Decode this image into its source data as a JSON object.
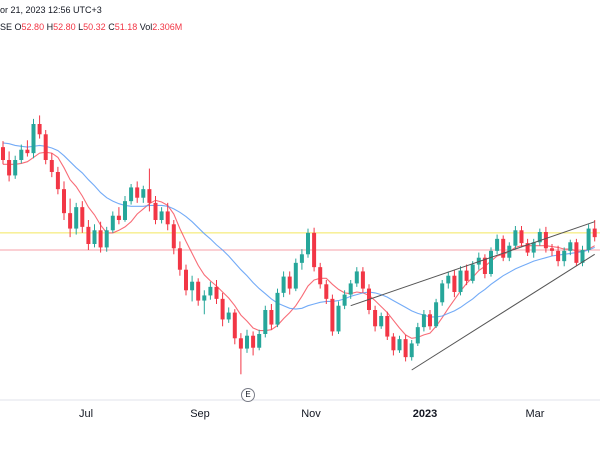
{
  "header": {
    "date_text": "or 21, 2023 12:56 UTC+3",
    "exchange_fragment": "SE",
    "o_label": "O",
    "o_value": "52.80",
    "h_label": "H",
    "h_value": "52.80",
    "l_label": "L",
    "l_value": "50.32",
    "c_label": "C",
    "c_value": "51.18",
    "vol_label": "Vol",
    "vol_value": "2.306M"
  },
  "earnings_marker": "E",
  "colors": {
    "up": "#26a69a",
    "down": "#f23645",
    "ma_fast": "#f7525f",
    "ma_slow": "#5b9cf6",
    "yellow_line": "#f3e65e",
    "pink_line": "#f7a1a8",
    "trend": "#555555"
  },
  "chart_data": {
    "type": "candlestick",
    "x_ticks": [
      "Jul",
      "Sep",
      "Nov",
      "2023",
      "Mar"
    ],
    "horizontal_lines": [
      {
        "name": "resistance",
        "level": 60.5
      },
      {
        "name": "price",
        "level": 58.5
      }
    ],
    "candles": [
      [
        70.5,
        71.2,
        68.5,
        69.0
      ],
      [
        69.0,
        70.0,
        66.5,
        67.2
      ],
      [
        67.2,
        69.5,
        66.8,
        69.0
      ],
      [
        69.0,
        70.8,
        68.6,
        70.2
      ],
      [
        70.2,
        71.3,
        69.4,
        69.8
      ],
      [
        69.8,
        73.8,
        69.2,
        73.2
      ],
      [
        73.2,
        74.2,
        71.5,
        72.0
      ],
      [
        72.0,
        72.5,
        68.5,
        69.0
      ],
      [
        69.0,
        69.8,
        67.0,
        67.6
      ],
      [
        67.6,
        68.2,
        65.0,
        65.6
      ],
      [
        65.6,
        66.5,
        62.0,
        62.8
      ],
      [
        62.8,
        64.5,
        60.0,
        61.0
      ],
      [
        61.0,
        64.0,
        60.3,
        63.5
      ],
      [
        63.5,
        64.2,
        60.5,
        61.2
      ],
      [
        61.2,
        62.0,
        58.5,
        59.2
      ],
      [
        59.2,
        61.5,
        58.8,
        60.8
      ],
      [
        60.8,
        61.8,
        58.2,
        58.8
      ],
      [
        58.8,
        61.2,
        58.3,
        60.8
      ],
      [
        60.8,
        63.0,
        60.5,
        62.5
      ],
      [
        62.5,
        63.5,
        61.5,
        62.0
      ],
      [
        62.0,
        64.8,
        61.8,
        64.2
      ],
      [
        64.2,
        66.2,
        63.8,
        65.8
      ],
      [
        65.8,
        66.5,
        64.0,
        64.6
      ],
      [
        64.6,
        66.0,
        64.0,
        65.6
      ],
      [
        65.6,
        68.0,
        63.0,
        64.0
      ],
      [
        64.0,
        64.8,
        61.5,
        62.0
      ],
      [
        62.0,
        63.5,
        61.6,
        63.0
      ],
      [
        63.0,
        64.0,
        60.8,
        61.5
      ],
      [
        61.5,
        62.0,
        58.0,
        58.7
      ],
      [
        58.7,
        59.5,
        55.5,
        56.2
      ],
      [
        56.2,
        56.8,
        53.2,
        53.8
      ],
      [
        53.8,
        55.5,
        52.5,
        54.8
      ],
      [
        54.8,
        55.2,
        52.0,
        52.6
      ],
      [
        52.6,
        53.8,
        51.0,
        53.2
      ],
      [
        53.2,
        54.8,
        52.7,
        54.2
      ],
      [
        54.2,
        55.0,
        52.2,
        52.8
      ],
      [
        52.8,
        53.5,
        49.6,
        50.4
      ],
      [
        50.4,
        51.8,
        50.0,
        51.2
      ],
      [
        51.2,
        51.6,
        47.5,
        48.2
      ],
      [
        48.2,
        48.8,
        44.0,
        47.0
      ],
      [
        47.0,
        49.2,
        46.5,
        48.5
      ],
      [
        48.5,
        49.0,
        46.2,
        47.1
      ],
      [
        47.1,
        49.2,
        46.8,
        48.7
      ],
      [
        48.7,
        52.0,
        48.3,
        51.5
      ],
      [
        51.5,
        52.2,
        49.2,
        49.8
      ],
      [
        49.8,
        54.0,
        49.5,
        53.5
      ],
      [
        53.5,
        56.0,
        53.0,
        55.4
      ],
      [
        55.4,
        56.0,
        53.3,
        54.0
      ],
      [
        54.0,
        57.5,
        53.7,
        57.0
      ],
      [
        57.0,
        58.6,
        56.2,
        58.0
      ],
      [
        58.0,
        61.0,
        57.6,
        60.5
      ],
      [
        60.5,
        61.1,
        56.0,
        56.5
      ],
      [
        56.5,
        57.0,
        54.0,
        54.5
      ],
      [
        54.5,
        55.0,
        52.2,
        52.8
      ],
      [
        52.8,
        53.3,
        48.5,
        49.0
      ],
      [
        49.0,
        52.5,
        48.7,
        52.0
      ],
      [
        52.0,
        53.8,
        51.6,
        53.3
      ],
      [
        53.3,
        55.0,
        52.8,
        54.6
      ],
      [
        54.6,
        56.5,
        54.2,
        56.0
      ],
      [
        56.0,
        56.5,
        53.5,
        54.0
      ],
      [
        54.0,
        54.5,
        51.0,
        51.5
      ],
      [
        51.5,
        52.0,
        49.0,
        49.6
      ],
      [
        49.6,
        51.2,
        49.3,
        50.8
      ],
      [
        50.8,
        51.3,
        48.0,
        48.4
      ],
      [
        48.4,
        48.8,
        46.2,
        46.8
      ],
      [
        46.8,
        48.5,
        46.5,
        48.1
      ],
      [
        48.1,
        48.6,
        45.5,
        46.0
      ],
      [
        46.0,
        48.0,
        45.6,
        47.6
      ],
      [
        47.6,
        50.0,
        47.3,
        49.5
      ],
      [
        49.5,
        51.5,
        49.0,
        51.0
      ],
      [
        51.0,
        51.5,
        49.2,
        49.6
      ],
      [
        49.6,
        52.8,
        49.4,
        52.4
      ],
      [
        52.4,
        55.0,
        52.0,
        54.6
      ],
      [
        54.6,
        56.0,
        54.0,
        55.5
      ],
      [
        55.5,
        56.2,
        53.0,
        53.6
      ],
      [
        53.6,
        56.6,
        53.2,
        56.1
      ],
      [
        56.1,
        56.8,
        54.4,
        54.9
      ],
      [
        54.9,
        57.2,
        54.6,
        56.8
      ],
      [
        56.8,
        58.2,
        56.2,
        57.6
      ],
      [
        57.6,
        58.0,
        55.2,
        55.7
      ],
      [
        55.7,
        58.8,
        55.4,
        58.4
      ],
      [
        58.4,
        60.3,
        58.0,
        59.8
      ],
      [
        59.8,
        60.2,
        57.2,
        57.6
      ],
      [
        57.6,
        59.4,
        57.2,
        59.0
      ],
      [
        59.0,
        61.3,
        58.6,
        60.8
      ],
      [
        60.8,
        61.3,
        58.8,
        59.3
      ],
      [
        59.3,
        59.8,
        57.8,
        58.2
      ],
      [
        58.2,
        59.8,
        57.6,
        59.4
      ],
      [
        59.4,
        61.0,
        59.0,
        60.6
      ],
      [
        60.6,
        61.2,
        58.2,
        58.7
      ],
      [
        58.7,
        59.2,
        57.8,
        58.4
      ],
      [
        58.4,
        59.0,
        56.6,
        57.2
      ],
      [
        57.2,
        58.8,
        56.6,
        58.4
      ],
      [
        58.4,
        59.7,
        57.9,
        59.4
      ],
      [
        59.4,
        59.8,
        56.6,
        57.0
      ],
      [
        57.0,
        59.0,
        56.6,
        58.5
      ],
      [
        58.5,
        61.5,
        58.2,
        61.0
      ],
      [
        61.0,
        62.0,
        59.5,
        60.0
      ]
    ],
    "moving_averages": [
      {
        "name": "fast",
        "values": [
          68.5,
          68.5,
          68.5,
          68.6,
          68.8,
          69.3,
          69.8,
          69.9,
          69.8,
          69.3,
          68.1,
          66.7,
          65.9,
          64.8,
          63.5,
          62.6,
          61.4,
          60.5,
          60.5,
          60.8,
          61.2,
          61.8,
          62.7,
          63.3,
          63.9,
          64.3,
          64.1,
          63.7,
          62.7,
          61.0,
          59.5,
          58.1,
          56.7,
          55.6,
          54.9,
          54.3,
          53.6,
          52.9,
          52.0,
          50.9,
          50.2,
          49.4,
          49.1,
          49.1,
          49.2,
          49.7,
          50.5,
          51.2,
          52.0,
          53.1,
          54.3,
          55.0,
          55.2,
          55.2,
          54.5,
          53.9,
          53.5,
          53.4,
          53.6,
          53.5,
          53.2,
          52.6,
          51.9,
          51.2,
          50.3,
          49.4,
          48.6,
          48.2,
          48.3,
          48.6,
          48.8,
          49.6,
          50.6,
          51.7,
          52.7,
          53.7,
          54.6,
          55.3,
          56.1,
          56.6,
          57.2,
          57.8,
          58.0,
          58.3,
          58.8,
          59.0,
          59.0,
          59.0,
          59.0,
          59.0,
          58.9,
          58.8,
          58.6,
          58.6,
          58.4,
          58.3,
          58.6,
          59.0
        ]
      },
      {
        "name": "slow",
        "values": [
          71.0,
          70.9,
          70.7,
          70.6,
          70.5,
          70.6,
          70.7,
          70.6,
          70.4,
          70.1,
          69.5,
          68.8,
          68.1,
          67.5,
          66.7,
          66.0,
          65.2,
          64.6,
          64.2,
          63.9,
          63.7,
          63.6,
          63.6,
          63.6,
          63.7,
          63.7,
          63.7,
          63.6,
          63.3,
          62.9,
          62.4,
          61.8,
          61.1,
          60.4,
          59.8,
          59.1,
          58.5,
          57.8,
          57.0,
          56.2,
          55.5,
          54.7,
          54.0,
          53.4,
          52.8,
          52.3,
          52.0,
          51.7,
          51.6,
          51.7,
          52.0,
          52.2,
          52.4,
          52.5,
          52.5,
          52.6,
          52.8,
          53.1,
          53.3,
          53.5,
          53.6,
          53.5,
          53.3,
          53.0,
          52.6,
          52.2,
          51.8,
          51.4,
          51.1,
          50.9,
          50.7,
          50.7,
          50.8,
          51.1,
          51.4,
          51.8,
          52.3,
          52.8,
          53.4,
          53.9,
          54.5,
          55.0,
          55.5,
          55.9,
          56.3,
          56.6,
          56.9,
          57.2,
          57.4,
          57.6,
          57.8,
          57.9,
          58.0,
          58.1,
          58.2,
          58.3,
          58.5,
          58.8
        ]
      }
    ],
    "trendlines": [
      {
        "name": "channel-upper",
        "from": [
          57,
          52.0
        ],
        "to": [
          97,
          61.8
        ]
      },
      {
        "name": "channel-lower",
        "from": [
          67,
          44.5
        ],
        "to": [
          97,
          58.0
        ]
      }
    ],
    "ylim": [
      41,
      83
    ]
  }
}
